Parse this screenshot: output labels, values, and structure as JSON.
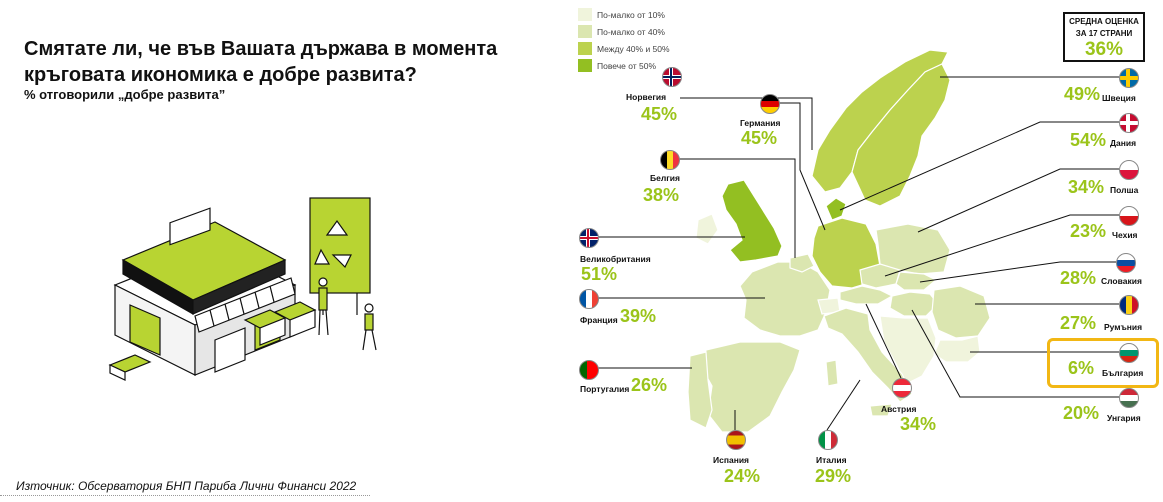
{
  "title": "Смятате ли, че във Вашата държава в момента кръговата икономика е добре развита?",
  "subtitle": "% отговорили „добре развита”",
  "source": "Източник: Обсерватория БНП Париба Лични Финанси 2022",
  "colors": {
    "c1": "#f0f4dc",
    "c2": "#dbe6b0",
    "c3": "#bcd24e",
    "c4": "#93bf22",
    "accent": "#9bc41a",
    "highlight": "#f2b714"
  },
  "legend": [
    {
      "label": "По-малко от 10%",
      "color": "#f0f4dc"
    },
    {
      "label": "По-малко от 40%",
      "color": "#dbe6b0"
    },
    {
      "label": "Между 40% и 50%",
      "color": "#bcd24e"
    },
    {
      "label": "Повече от 50%",
      "color": "#93bf22"
    }
  ],
  "average": {
    "label_line1": "СРЕДНА ОЦЕНКА",
    "label_line2": "ЗА 17 СТРАНИ",
    "value": "36%"
  },
  "chart_data": {
    "type": "map",
    "title": "Смятате ли, че във Вашата държава в момента кръговата икономика е добре развита?",
    "subtitle": "% отговорили „добре развита”",
    "unit": "%",
    "average": 36,
    "countries": [
      {
        "name": "Норвегия",
        "value": 45,
        "display": "45%",
        "flag": "norway-flag"
      },
      {
        "name": "Германия",
        "value": 45,
        "display": "45%",
        "flag": "germany-flag"
      },
      {
        "name": "Белгия",
        "value": 38,
        "display": "38%",
        "flag": "belgium-flag"
      },
      {
        "name": "Великобритания",
        "value": 51,
        "display": "51%",
        "flag": "uk-flag"
      },
      {
        "name": "Франция",
        "value": 39,
        "display": "39%",
        "flag": "france-flag"
      },
      {
        "name": "Португалия",
        "value": 26,
        "display": "26%",
        "flag": "portugal-flag"
      },
      {
        "name": "Испания",
        "value": 24,
        "display": "24%",
        "flag": "spain-flag"
      },
      {
        "name": "Италия",
        "value": 29,
        "display": "29%",
        "flag": "italy-flag"
      },
      {
        "name": "Австрия",
        "value": 34,
        "display": "34%",
        "flag": "austria-flag"
      },
      {
        "name": "Швеция",
        "value": 49,
        "display": "49%",
        "flag": "sweden-flag"
      },
      {
        "name": "Дания",
        "value": 54,
        "display": "54%",
        "flag": "denmark-flag"
      },
      {
        "name": "Полша",
        "value": 34,
        "display": "34%",
        "flag": "poland-flag"
      },
      {
        "name": "Чехия",
        "value": 23,
        "display": "23%",
        "flag": "czech-flag"
      },
      {
        "name": "Словакия",
        "value": 28,
        "display": "28%",
        "flag": "slovakia-flag"
      },
      {
        "name": "Румъния",
        "value": 27,
        "display": "27%",
        "flag": "romania-flag"
      },
      {
        "name": "България",
        "value": 6,
        "display": "6%",
        "flag": "bulgaria-flag",
        "highlighted": true
      },
      {
        "name": "Унгария",
        "value": 20,
        "display": "20%",
        "flag": "hungary-flag"
      }
    ]
  }
}
